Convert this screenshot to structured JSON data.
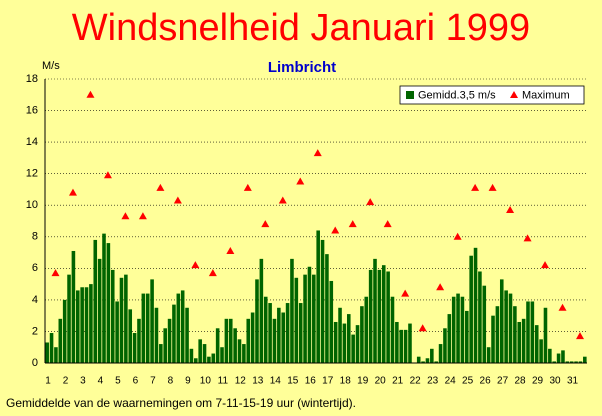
{
  "chart_data": {
    "type": "bar",
    "title": "Windsnelheid Januari 1999",
    "subtitle": "Limbricht",
    "y_label": "M/s",
    "footnote": "Gemiddelde van de waarnemingen om 7-11-15-19 uur (wintertijd).",
    "categories": [
      "1",
      "2",
      "3",
      "4",
      "5",
      "6",
      "7",
      "8",
      "9",
      "10",
      "11",
      "12",
      "13",
      "14",
      "15",
      "16",
      "17",
      "18",
      "19",
      "20",
      "21",
      "22",
      "23",
      "24",
      "25",
      "26",
      "27",
      "28",
      "29",
      "30",
      "31"
    ],
    "series": [
      {
        "name": "Gemidd.3,5 m/s",
        "color": "#006400",
        "type": "bar",
        "values": [
          [
            1.3,
            1.9,
            1.0,
            2.8
          ],
          [
            4.0,
            5.6,
            7.1,
            4.6
          ],
          [
            4.8,
            4.8,
            5.0,
            7.8
          ],
          [
            6.6,
            8.2,
            7.6,
            5.9
          ],
          [
            3.9,
            5.4,
            5.6,
            3.4
          ],
          [
            1.9,
            2.8,
            4.4,
            4.4
          ],
          [
            5.3,
            3.5,
            1.2,
            2.2
          ],
          [
            2.8,
            3.7,
            4.4,
            4.6
          ],
          [
            3.5,
            0.9,
            0.3,
            1.5
          ],
          [
            1.2,
            0.4,
            0.6,
            2.2
          ],
          [
            1.0,
            2.8,
            2.8,
            2.2
          ],
          [
            1.5,
            1.2,
            2.8,
            3.2
          ],
          [
            5.3,
            6.6,
            4.2,
            3.8
          ],
          [
            2.8,
            3.5,
            3.2,
            3.8
          ],
          [
            6.6,
            5.4,
            3.8,
            5.6
          ],
          [
            6.1,
            5.6,
            8.4,
            7.8
          ],
          [
            6.9,
            5.2,
            2.6,
            3.5
          ],
          [
            2.5,
            3.1,
            1.8,
            2.4
          ],
          [
            3.6,
            4.2,
            5.9,
            6.6
          ],
          [
            5.9,
            6.2,
            5.8,
            4.2
          ],
          [
            2.6,
            2.1,
            2.1,
            2.5
          ],
          [
            0,
            0.4,
            0.1,
            0.3
          ],
          [
            0.9,
            0.1,
            1.2,
            2.2
          ],
          [
            3.1,
            4.2,
            4.4,
            4.2
          ],
          [
            3.3,
            6.8,
            7.3,
            5.8
          ],
          [
            4.9,
            1.0,
            3.0,
            3.6
          ],
          [
            5.3,
            4.6,
            4.4,
            3.6
          ],
          [
            2.6,
            2.8,
            3.9,
            3.9
          ],
          [
            2.4,
            1.5,
            3.5,
            0.9
          ],
          [
            0.1,
            0.6,
            0.8,
            0.1
          ],
          [
            0.1,
            0.1,
            0.1,
            0.4
          ]
        ]
      },
      {
        "name": "Maximum",
        "color": "#ff0000",
        "type": "scatter",
        "values": [
          5.7,
          10.8,
          17,
          11.9,
          9.3,
          9.3,
          11.1,
          10.3,
          6.2,
          5.7,
          7.1,
          11.1,
          8.8,
          10.3,
          11.5,
          13.3,
          8.4,
          8.8,
          10.2,
          8.8,
          4.4,
          2.2,
          4.8,
          8.0,
          11.1,
          11.1,
          9.7,
          7.9,
          6.2,
          3.5,
          1.7
        ]
      }
    ],
    "ylim": [
      0,
      18
    ],
    "yticks": [
      0,
      2,
      4,
      6,
      8,
      10,
      12,
      14,
      16,
      18
    ],
    "grid": true,
    "legend": "upper right"
  }
}
